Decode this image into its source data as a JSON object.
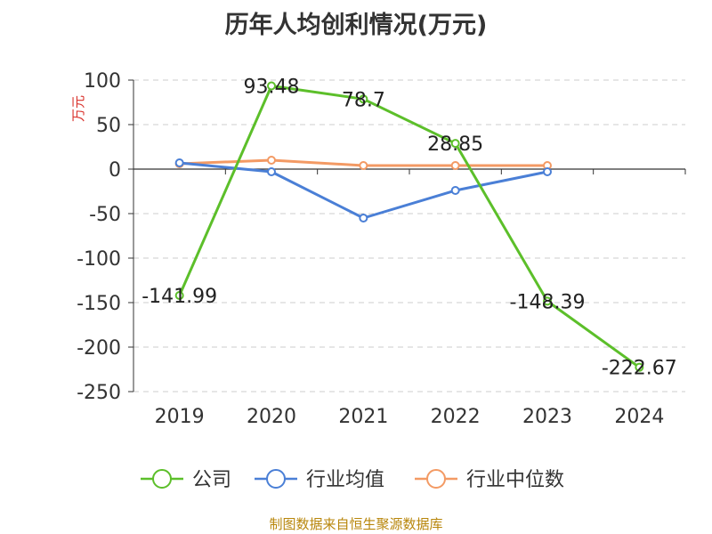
{
  "title": "历年人均创利情况(万元)",
  "source": "制图数据来自恒生聚源数据库",
  "chart_data": {
    "type": "line",
    "title": "历年人均创利情况(万元)",
    "ylabel": "万元",
    "categories": [
      "2019",
      "2020",
      "2021",
      "2022",
      "2023",
      "2024"
    ],
    "ylim": [
      -250,
      100
    ],
    "yticks": [
      100,
      50,
      0,
      -50,
      -100,
      -150,
      -200,
      -250
    ],
    "grid": true,
    "legend_position": "bottom",
    "series": [
      {
        "name": "公司",
        "color": "#5cbf2a",
        "values": [
          -141.99,
          93.48,
          78.7,
          28.85,
          -148.39,
          -222.67
        ],
        "labels": [
          "-141.99",
          "93.48",
          "78.7",
          "28.85",
          "-148.39",
          "-222.67"
        ]
      },
      {
        "name": "行业均值",
        "color": "#4a7fd6",
        "values": [
          7,
          -3,
          -55,
          -24,
          -3,
          null
        ]
      },
      {
        "name": "行业中位数",
        "color": "#f39a64",
        "values": [
          6,
          10,
          4,
          4,
          4,
          null
        ]
      }
    ]
  }
}
